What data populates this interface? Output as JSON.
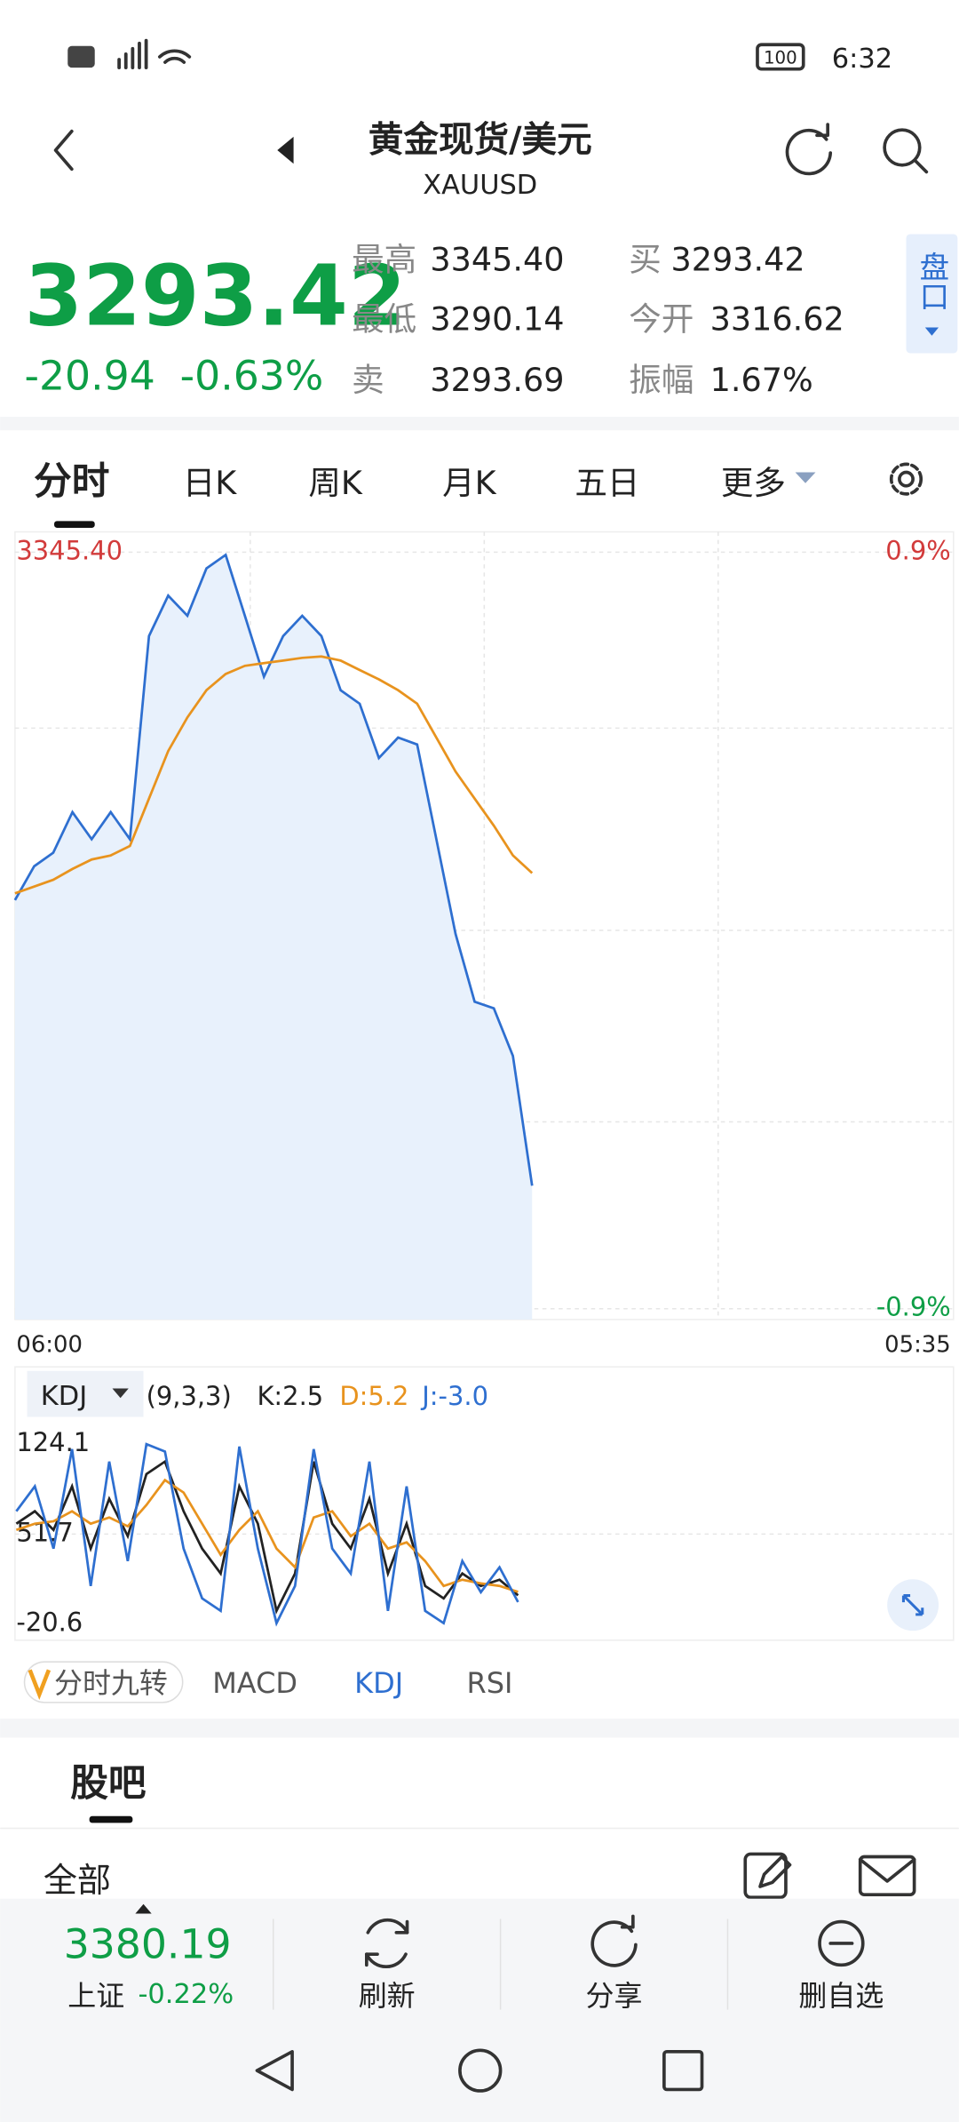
{
  "status_bar": {
    "time": "6:32",
    "battery": "100"
  },
  "header": {
    "title": "黄金现货/美元",
    "symbol": "XAUUSD"
  },
  "quote": {
    "price": "3293.42",
    "change": "-20.94",
    "change_pct": "-0.63%",
    "stats": [
      {
        "label": "最高",
        "value": "3345.40"
      },
      {
        "label": "买",
        "value": "3293.42"
      },
      {
        "label": "最低",
        "value": "3290.14"
      },
      {
        "label": "今开",
        "value": "3316.62"
      },
      {
        "label": "卖",
        "value": "3293.69"
      },
      {
        "label": "振幅",
        "value": "1.67%"
      }
    ],
    "side_button": "盘口"
  },
  "tabs": [
    "分时",
    "日K",
    "周K",
    "月K",
    "五日",
    "更多"
  ],
  "chart_data": {
    "type": "line",
    "ylim": [
      3283.32,
      3345.4
    ],
    "yticks": [
      {
        "value": 3345.4,
        "label": "3345.40"
      },
      3314.36,
      3283.32
    ],
    "pct_labels": [
      "0.9%",
      "-0.9%"
    ],
    "x_labels": [
      "06:00",
      "05:35"
    ],
    "series": [
      {
        "color": "#2e6fd0",
        "values": [
          3316.85,
          3319.62,
          3320.74,
          3324.07,
          3321.85,
          3324.07,
          3321.85,
          3338.51,
          3341.84,
          3340.18,
          3344.07,
          3345.18,
          3340.18,
          3335.18,
          3338.51,
          3340.18,
          3338.51,
          3334.07,
          3332.96,
          3328.51,
          3330.18,
          3329.62,
          3321.85,
          3314.07,
          3308.51,
          3307.96,
          3304.07,
          3293.42,
          null,
          null,
          null,
          null,
          null,
          null,
          null,
          null,
          null,
          null,
          null,
          null,
          null,
          null,
          null,
          null,
          null,
          null,
          null,
          null,
          null,
          null
        ]
      },
      {
        "color": "#e8931e",
        "values": [
          3317.4,
          3317.96,
          3318.51,
          3319.4,
          3320.18,
          3320.51,
          3321.29,
          3325.18,
          3329.07,
          3331.84,
          3334.07,
          3335.4,
          3336.07,
          3336.29,
          3336.51,
          3336.73,
          3336.84,
          3336.51,
          3335.73,
          3334.96,
          3334.07,
          3332.96,
          3330.18,
          3327.4,
          3325.18,
          3322.96,
          3320.51,
          3319.07,
          null,
          null,
          null,
          null,
          null,
          null,
          null,
          null,
          null,
          null,
          null,
          null,
          null,
          null,
          null,
          null,
          null,
          null,
          null,
          null,
          null,
          null
        ]
      }
    ]
  },
  "indicator": {
    "type": "line",
    "name": "KDJ",
    "params": "(9,3,3)",
    "ylim": [
      -20.6,
      124.1
    ],
    "yticks": [
      124.1,
      51.7,
      -20.6
    ],
    "series": [
      {
        "label": "K:2.5",
        "color": "#222222",
        "values": [
          60,
          70,
          55,
          90,
          40,
          80,
          50,
          100,
          110,
          70,
          40,
          20,
          90,
          60,
          -10,
          20,
          110,
          60,
          40,
          80,
          20,
          60,
          10,
          0,
          20,
          10,
          15,
          2.5
        ]
      },
      {
        "label": "D:5.2",
        "color": "#e8931e",
        "values": [
          55,
          60,
          62,
          70,
          60,
          65,
          58,
          75,
          95,
          85,
          60,
          35,
          55,
          70,
          40,
          25,
          65,
          70,
          50,
          60,
          40,
          45,
          30,
          10,
          15,
          12,
          10,
          5.2
        ]
      },
      {
        "label": "J:-3.0",
        "color": "#2e6fd0",
        "values": [
          70,
          90,
          40,
          120,
          10,
          110,
          30,
          124,
          118,
          40,
          0,
          -10,
          122,
          40,
          -20,
          10,
          120,
          40,
          20,
          110,
          -10,
          90,
          -10,
          -20,
          30,
          5,
          25,
          -3.0
        ]
      }
    ]
  },
  "indicator_tabs": [
    "分时九转",
    "MACD",
    "KDJ",
    "RSI"
  ],
  "section": {
    "title": "股吧",
    "filter": "全部"
  },
  "bottom_bar": {
    "index_price": "3380.19",
    "index_name": "上证",
    "index_change": "-0.22%",
    "buttons": [
      "刷新",
      "分享",
      "删自选"
    ]
  }
}
